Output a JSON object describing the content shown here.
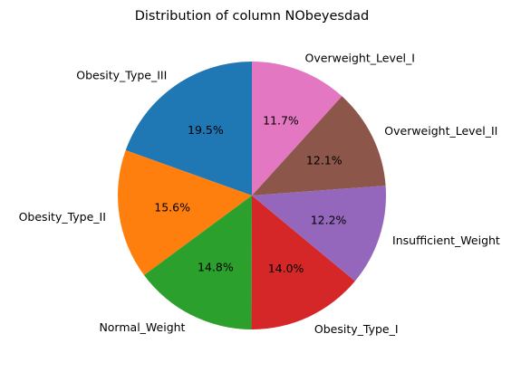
{
  "chart_data": {
    "type": "pie",
    "title": "Distribution of column NObeyesdad",
    "start_angle_deg": 90,
    "direction": "counterclockwise",
    "slices": [
      {
        "label": "Obesity_Type_III",
        "value": 19.5,
        "pct_text": "19.5%",
        "color": "#1f77b4"
      },
      {
        "label": "Obesity_Type_II",
        "value": 15.6,
        "pct_text": "15.6%",
        "color": "#ff7f0e"
      },
      {
        "label": "Normal_Weight",
        "value": 14.8,
        "pct_text": "14.8%",
        "color": "#2ca02c"
      },
      {
        "label": "Obesity_Type_I",
        "value": 14.0,
        "pct_text": "14.0%",
        "color": "#d62728"
      },
      {
        "label": "Insufficient_Weight",
        "value": 12.2,
        "pct_text": "12.2%",
        "color": "#9467bd"
      },
      {
        "label": "Overweight_Level_II",
        "value": 12.1,
        "pct_text": "12.1%",
        "color": "#8c564b"
      },
      {
        "label": "Overweight_Level_I",
        "value": 11.7,
        "pct_text": "11.7%",
        "color": "#e377c2"
      }
    ]
  }
}
